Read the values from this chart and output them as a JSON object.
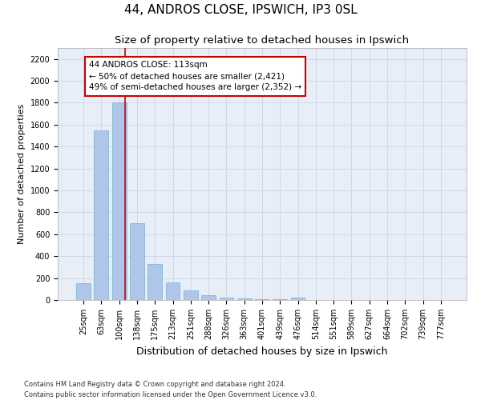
{
  "title": "44, ANDROS CLOSE, IPSWICH, IP3 0SL",
  "subtitle": "Size of property relative to detached houses in Ipswich",
  "xlabel": "Distribution of detached houses by size in Ipswich",
  "ylabel": "Number of detached properties",
  "bin_labels": [
    "25sqm",
    "63sqm",
    "100sqm",
    "138sqm",
    "175sqm",
    "213sqm",
    "251sqm",
    "288sqm",
    "326sqm",
    "363sqm",
    "401sqm",
    "439sqm",
    "476sqm",
    "514sqm",
    "551sqm",
    "589sqm",
    "627sqm",
    "664sqm",
    "702sqm",
    "739sqm",
    "777sqm"
  ],
  "bar_heights": [
    150,
    1550,
    1800,
    700,
    325,
    160,
    85,
    45,
    25,
    15,
    8,
    5,
    20,
    0,
    0,
    0,
    0,
    0,
    0,
    0,
    0
  ],
  "bar_color": "#aec6e8",
  "bar_edgecolor": "#7aaed0",
  "ylim": [
    0,
    2300
  ],
  "yticks": [
    0,
    200,
    400,
    600,
    800,
    1000,
    1200,
    1400,
    1600,
    1800,
    2000,
    2200
  ],
  "property_size": 113,
  "property_bin_index": 2,
  "red_line_color": "#cc0000",
  "annotation_text": "44 ANDROS CLOSE: 113sqm\n← 50% of detached houses are smaller (2,421)\n49% of semi-detached houses are larger (2,352) →",
  "annotation_box_color": "#ffffff",
  "annotation_box_edge": "#cc0000",
  "grid_color": "#d0d8e8",
  "background_color": "#e8eef8",
  "footer_text": "Contains HM Land Registry data © Crown copyright and database right 2024.\nContains public sector information licensed under the Open Government Licence v3.0.",
  "title_fontsize": 11,
  "subtitle_fontsize": 9.5,
  "xlabel_fontsize": 9,
  "ylabel_fontsize": 8,
  "tick_fontsize": 7,
  "footer_fontsize": 6,
  "annotation_fontsize": 7.5
}
